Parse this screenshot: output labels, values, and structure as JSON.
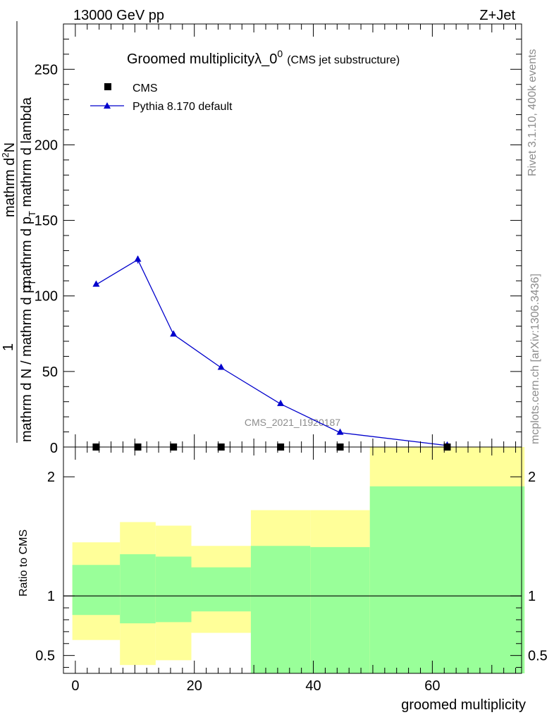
{
  "header": {
    "left": "13000 GeV pp",
    "right": "Z+Jet"
  },
  "title": {
    "main": "Groomed multiplicityλ_0",
    "superscript": "0",
    "sub": "(CMS jet substructure)"
  },
  "y_axis_label": {
    "numerator": "mathrm d²N",
    "numerator_prefix": "mathrm d",
    "numerator_sup": "2",
    "numerator_suffix": "N",
    "denominator_top": "mathrm d p",
    "denominator_top_sub": "T",
    "denominator_top_rest": " mathrm d lambda",
    "one": "1",
    "fraction_lower": "mathrm d N / mathrm d p",
    "fraction_lower_sub": "T",
    "fraction_lower_rest": "mathrm d p",
    "fraction_lower_sub2": "T",
    "fraction_lower_rest2": " mathrm d lambda"
  },
  "ratio_label": "Ratio to CMS",
  "x_label": "groomed multiplicity",
  "side_text": {
    "rivet": "Rivet 3.1.10,  400k events",
    "mcplots": "mcplots.cern.ch [arXiv:1306.3436]"
  },
  "watermark": "CMS_2021_I1920187",
  "legend": [
    {
      "name": "CMS",
      "color": "#000000",
      "marker": "square"
    },
    {
      "name": "Pythia 8.170 default",
      "color": "#0000cc",
      "marker": "triangle"
    }
  ],
  "chart_data": {
    "type": "line",
    "xlim": [
      -2,
      75
    ],
    "main_ylim": [
      0,
      280
    ],
    "main_yticks": [
      50,
      100,
      150,
      200,
      250
    ],
    "main_ytick_labels": [
      "50",
      "100",
      "150",
      "200",
      "250"
    ],
    "main_ybottom_label": "0",
    "ratio_ylim": [
      0.35,
      2.25
    ],
    "ratio_yticks": [
      0.5,
      1,
      2
    ],
    "ratio_ytick_labels": [
      "0.5",
      "1",
      "2"
    ],
    "xticks": [
      0,
      20,
      40,
      60
    ],
    "xtick_labels": [
      "0",
      "20",
      "40",
      "60"
    ],
    "bin_edges": [
      -0.5,
      7.5,
      13.5,
      19.5,
      29.5,
      39.5,
      49.5,
      75.5
    ],
    "series": [
      {
        "name": "CMS",
        "x": [
          3.5,
          10.5,
          16.5,
          24.5,
          34.5,
          44.5,
          62.5
        ],
        "y": [
          0,
          0,
          0,
          0,
          0,
          0,
          0
        ]
      },
      {
        "name": "Pythia 8.170 default",
        "x": [
          3.5,
          10.5,
          16.5,
          24.5,
          34.5,
          44.5,
          62.5
        ],
        "y": [
          107.5,
          124,
          74.5,
          52.5,
          28.5,
          9.5,
          1
        ]
      }
    ],
    "ratio_bands": {
      "outer_yellow": [
        [
          0.63,
          1.45
        ],
        [
          0.42,
          1.62
        ],
        [
          0.46,
          1.59
        ],
        [
          0.69,
          1.42
        ],
        [
          0.35,
          1.72
        ],
        [
          0.35,
          1.72
        ],
        [
          0.35,
          2.25
        ]
      ],
      "inner_green": [
        [
          0.84,
          1.26
        ],
        [
          0.77,
          1.35
        ],
        [
          0.78,
          1.33
        ],
        [
          0.87,
          1.24
        ],
        [
          0.35,
          1.42
        ],
        [
          0.35,
          1.41
        ],
        [
          0.35,
          1.92
        ]
      ]
    },
    "ratio_reference": 1
  }
}
